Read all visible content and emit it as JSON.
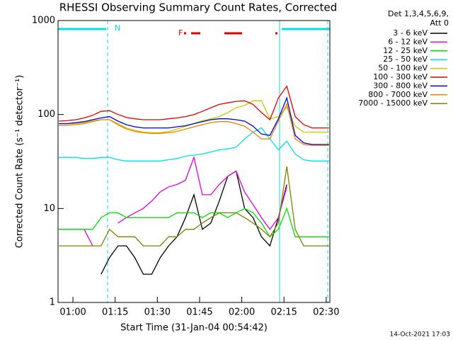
{
  "chart_data": {
    "type": "line",
    "title": "RHESSI Observing Summary Count Rates, Corrected",
    "x_label": "Start Time (31-Jan-04 00:54:42)",
    "y_label": "Corrected Count Rate (s⁻¹ detector⁻¹)",
    "legend_title": [
      "Det 1,3,4,5,6,9,",
      "Att 0"
    ],
    "annotations": [
      "N",
      "F"
    ],
    "timestamp": "14-Oct-2021 17:03",
    "log_y": true,
    "xlim": [
      54.7,
      151.3
    ],
    "ylim": [
      1,
      1000
    ],
    "xticks": [
      {
        "value": 60,
        "label": "01:00"
      },
      {
        "value": 75,
        "label": "01:15"
      },
      {
        "value": 90,
        "label": "01:30"
      },
      {
        "value": 105,
        "label": "01:45"
      },
      {
        "value": 120,
        "label": "02:00"
      },
      {
        "value": 135,
        "label": "02:15"
      },
      {
        "value": 150,
        "label": "02:30"
      }
    ],
    "yticks": [
      1,
      10,
      100,
      1000
    ],
    "x": [
      55,
      58,
      61,
      64,
      67,
      70,
      73,
      76,
      79,
      82,
      85,
      88,
      91,
      94,
      97,
      100,
      103,
      106,
      109,
      112,
      115,
      118,
      121,
      124,
      127,
      130,
      133,
      136,
      139,
      142,
      145,
      148,
      151
    ],
    "series": [
      {
        "name": "3 - 6 keV",
        "color": "#000000",
        "values": [
          null,
          null,
          null,
          null,
          null,
          2,
          3,
          4,
          4,
          3,
          2,
          2,
          3,
          4,
          5,
          8,
          14,
          6,
          7,
          12,
          22,
          25,
          10,
          8,
          5,
          4,
          8,
          18,
          null,
          null,
          null,
          null,
          null
        ]
      },
      {
        "name": "6 - 12 keV",
        "color": "#e000e0",
        "values": [
          6,
          6,
          6,
          6,
          4,
          null,
          null,
          7,
          8,
          9,
          10,
          12,
          15,
          17,
          18,
          20,
          35,
          14,
          14,
          18,
          22,
          25,
          15,
          11,
          8,
          6,
          8,
          17,
          null,
          null,
          null,
          null,
          null
        ]
      },
      {
        "name": "12 - 25 keV",
        "color": "#00e000",
        "values": [
          6,
          6,
          6,
          6,
          6,
          8,
          9,
          9,
          8,
          8,
          8,
          8,
          8,
          8,
          9,
          9,
          9,
          8,
          9,
          9,
          8,
          9,
          10,
          9,
          7,
          5,
          6,
          10,
          5,
          5,
          5,
          5,
          5
        ]
      },
      {
        "name": "25 - 50 keV",
        "color": "#00e0e0",
        "values": [
          35,
          35,
          35,
          34,
          34,
          35,
          35,
          33,
          32,
          32,
          32,
          32,
          32,
          33,
          34,
          36,
          37,
          38,
          40,
          42,
          43,
          45,
          55,
          65,
          72,
          55,
          42,
          52,
          38,
          33,
          32,
          32,
          32
        ]
      },
      {
        "name": "50 - 100 keV",
        "color": "#c8c800",
        "values": [
          80,
          80,
          80,
          82,
          86,
          88,
          88,
          80,
          72,
          68,
          65,
          64,
          64,
          66,
          70,
          75,
          80,
          86,
          90,
          95,
          105,
          118,
          125,
          140,
          140,
          90,
          95,
          120,
          75,
          65,
          65,
          65,
          65
        ]
      },
      {
        "name": "100 - 300 keV",
        "color": "#e00000",
        "values": [
          85,
          86,
          88,
          92,
          98,
          108,
          110,
          100,
          93,
          90,
          88,
          88,
          88,
          90,
          92,
          95,
          100,
          108,
          118,
          128,
          133,
          138,
          140,
          128,
          105,
          88,
          150,
          200,
          95,
          78,
          72,
          72,
          72
        ]
      },
      {
        "name": "300 - 800 keV",
        "color": "#0000e0",
        "values": [
          80,
          80,
          82,
          84,
          88,
          92,
          95,
          85,
          78,
          74,
          72,
          72,
          72,
          72,
          74,
          76,
          80,
          84,
          88,
          90,
          90,
          88,
          85,
          75,
          62,
          60,
          90,
          150,
          60,
          50,
          48,
          48,
          48
        ]
      },
      {
        "name": "800 - 7000 keV",
        "color": "#f08000",
        "values": [
          77,
          77,
          78,
          80,
          84,
          88,
          88,
          78,
          70,
          66,
          64,
          63,
          63,
          64,
          66,
          70,
          74,
          78,
          82,
          84,
          84,
          80,
          75,
          65,
          55,
          55,
          85,
          130,
          55,
          48,
          47,
          47,
          47
        ]
      },
      {
        "name": "7000 - 15000 keV",
        "color": "#808000",
        "values": [
          4,
          4,
          4,
          4,
          4,
          4,
          6,
          5,
          5,
          5,
          4,
          4,
          4,
          5,
          5,
          6,
          6,
          7,
          8,
          9,
          9,
          9,
          8,
          7,
          6,
          5,
          7,
          28,
          6,
          4,
          4,
          4,
          4
        ]
      }
    ]
  }
}
